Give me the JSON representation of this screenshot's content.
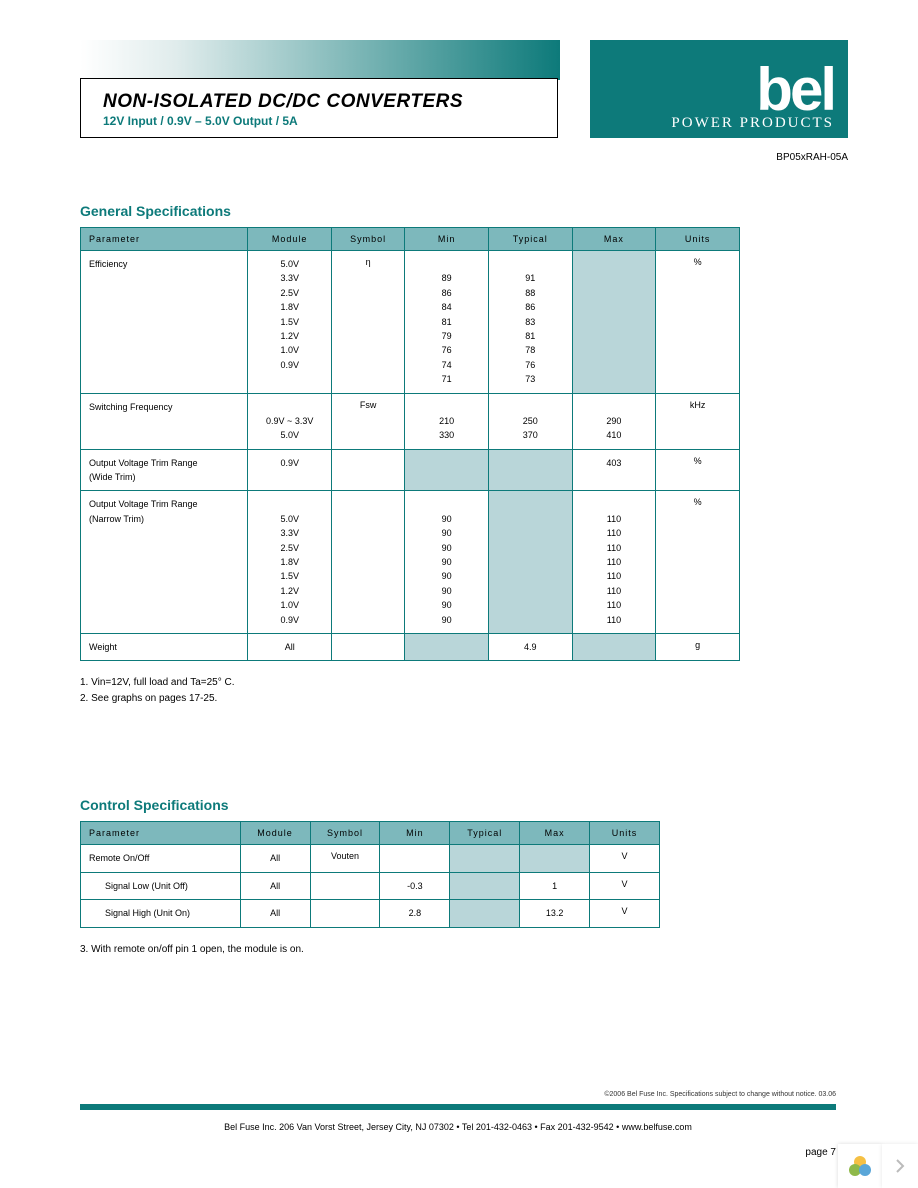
{
  "header": {
    "title": "NON-ISOLATED DC/DC CONVERTERS",
    "subtitle": "12V Input / 0.9V – 5.0V Output / 5A",
    "brand": "bel",
    "brand_tag": "POWER PRODUCTS",
    "part_number": "BP05xRAH-05A"
  },
  "section1": {
    "title": "General Specifications",
    "columns": [
      "Parameter",
      "Module",
      "Symbol",
      "Min",
      "Typical",
      "Max",
      "Units"
    ],
    "rows": [
      {
        "param": "Efficiency",
        "module": "5.0V\n3.3V\n2.5V\n1.8V\n1.5V\n1.2V\n1.0V\n0.9V",
        "symbol": "η",
        "min": "\n89\n86\n84\n81\n79\n76\n74\n71",
        "typ": "\n91\n88\n86\n83\n81\n78\n76\n73",
        "max_shaded": true,
        "units": "%"
      },
      {
        "param": "Switching Frequency",
        "module": "\n0.9V ~ 3.3V\n5.0V",
        "symbol": "Fsw",
        "min": "\n210\n330",
        "typ": "\n250\n370",
        "max": "\n290\n410",
        "units": "kHz"
      },
      {
        "param": "Output Voltage Trim Range\n(Wide Trim)",
        "module": "0.9V",
        "symbol": "",
        "min_shaded": true,
        "typ_shaded": true,
        "max": "403",
        "units": "%"
      },
      {
        "param": "Output Voltage Trim Range\n(Narrow Trim)",
        "module": "\n5.0V\n3.3V\n2.5V\n1.8V\n1.5V\n1.2V\n1.0V\n0.9V",
        "symbol": "",
        "min": "\n90\n90\n90\n90\n90\n90\n90\n90",
        "typ_shaded": true,
        "max": "\n110\n110\n110\n110\n110\n110\n110\n110",
        "units": "%"
      },
      {
        "param": "Weight",
        "module": "All",
        "symbol": "",
        "min_shaded": true,
        "typ": "4.9",
        "max_shaded": true,
        "units": "g"
      }
    ],
    "notes": "1. Vin=12V, full load and Ta=25° C.\n2. See graphs on pages 17-25."
  },
  "section2": {
    "title": "Control Specifications",
    "columns": [
      "Parameter",
      "Module",
      "Symbol",
      "Min",
      "Typical",
      "Max",
      "Units"
    ],
    "rows": [
      {
        "param": "Remote On/Off",
        "module": "All",
        "symbol": "Vouten",
        "min": "",
        "typ_shaded": true,
        "max_shaded": true,
        "units": "V"
      },
      {
        "param": "Signal Low (Unit Off)",
        "indent": true,
        "module": "All",
        "symbol": "",
        "min": "-0.3",
        "typ_shaded": true,
        "max": "1",
        "units": "V"
      },
      {
        "param": "Signal High (Unit On)",
        "indent": true,
        "module": "All",
        "symbol": "",
        "min": "2.8",
        "typ_shaded": true,
        "max": "13.2",
        "units": "V"
      }
    ],
    "notes": "3. With remote on/off pin 1 open, the module is on."
  },
  "footer": {
    "copyright": "©2006 Bel Fuse Inc.   Specifications subject to change without notice.  03.06",
    "address": "Bel Fuse Inc.  206 Van Vorst Street, Jersey City, NJ 07302 • Tel 201-432-0463 • Fax 201-432-9542 • www.belfuse.com",
    "page": "page 7"
  },
  "colors": {
    "teal": "#0d7a7a",
    "header_bg": "#7db8bc",
    "shaded_cell": "#b9d6d9"
  }
}
